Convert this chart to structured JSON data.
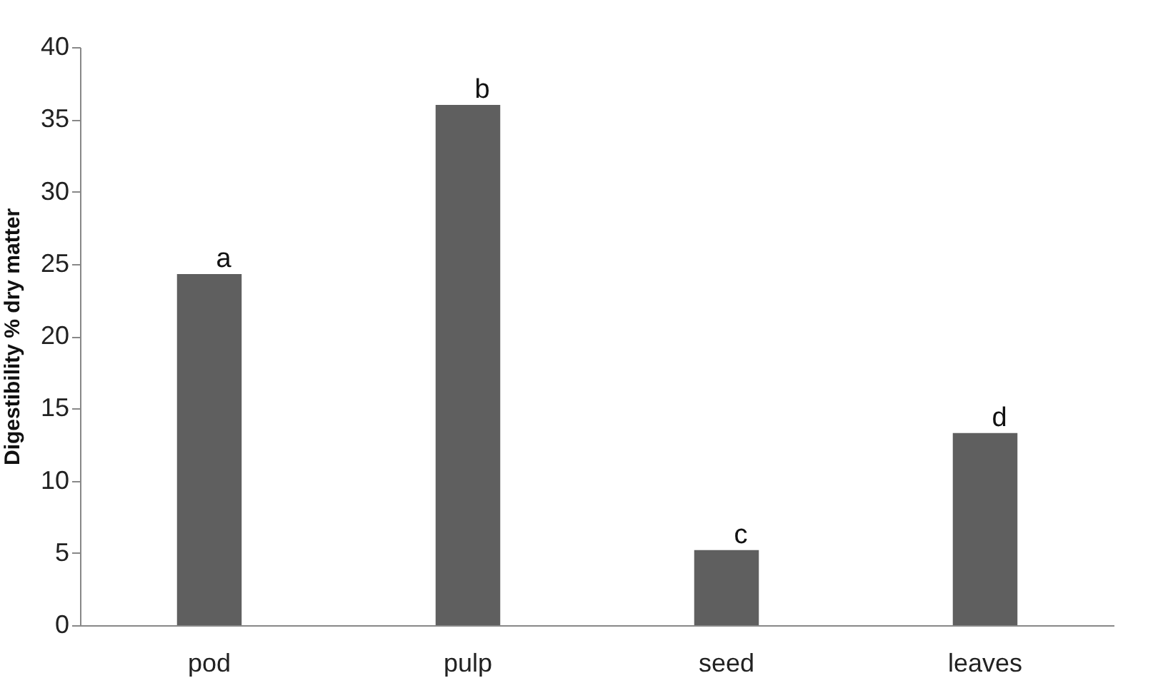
{
  "chart_data": {
    "type": "bar",
    "ylabel": "Digestibility % dry matter",
    "categories": [
      "pod",
      "pulp",
      "seed",
      "leaves"
    ],
    "values": [
      24.3,
      36.0,
      5.2,
      13.3
    ],
    "color": "#5f5f5f",
    "ylim": [
      0,
      40
    ],
    "yticks": [
      0,
      5,
      10,
      15,
      20,
      25,
      30,
      35,
      40
    ],
    "grid": false,
    "annotations": [
      {
        "text": "a",
        "x": "pod",
        "y": 24.3
      },
      {
        "text": "b",
        "x": "pulp",
        "y": 36.0
      },
      {
        "text": "c",
        "x": "seed",
        "y": 5.2
      },
      {
        "text": "d",
        "x": "leaves",
        "y": 13.3
      }
    ]
  }
}
